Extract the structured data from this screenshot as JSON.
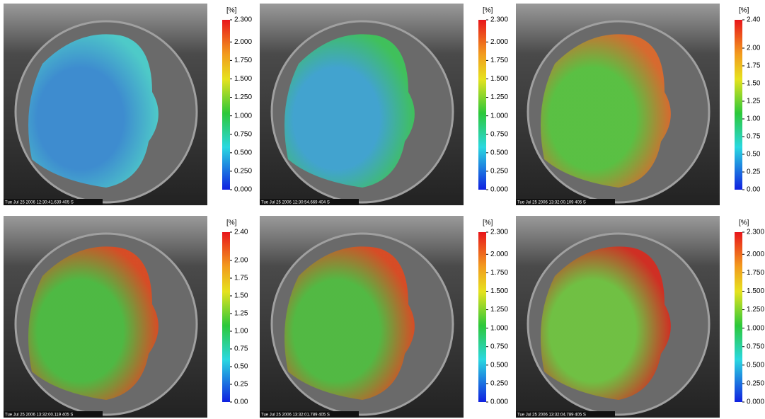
{
  "panels": [
    {
      "unit": "[%]",
      "timestamp": "Tue Jul 25 2006 12:30:41.639 405 S",
      "ticks": [
        "2.300",
        "2.000",
        "1.750",
        "1.500",
        "1.250",
        "1.000",
        "0.750",
        "0.500",
        "0.250",
        "0.000"
      ]
    },
    {
      "unit": "[%]",
      "timestamp": "Tue Jul 25 2006 12:30:54.669 404 S",
      "ticks": [
        "2.300",
        "2.000",
        "1.750",
        "1.500",
        "1.250",
        "1.000",
        "0.750",
        "0.500",
        "0.250",
        "0.000"
      ]
    },
    {
      "unit": "[%]",
      "timestamp": "Tue Jul 25 2006 13:32:00.109 405 S",
      "ticks": [
        "2.40",
        "2.00",
        "1.75",
        "1.50",
        "1.25",
        "1.00",
        "0.75",
        "0.50",
        "0.25",
        "0.00"
      ]
    },
    {
      "unit": "[%]",
      "timestamp": "Tue Jul 25 2006 13:32:00.119 405 S",
      "ticks": [
        "2.40",
        "2.00",
        "1.75",
        "1.50",
        "1.25",
        "1.00",
        "0.75",
        "0.50",
        "0.25",
        "0.00"
      ]
    },
    {
      "unit": "[%]",
      "timestamp": "Tue Jul 25 2006 13:32:01.789 405 S",
      "ticks": [
        "2.300",
        "2.000",
        "1.750",
        "1.500",
        "1.250",
        "1.000",
        "0.750",
        "0.500",
        "0.250",
        "0.000"
      ]
    },
    {
      "unit": "[%]",
      "timestamp": "Tue Jul 25 2006 13:32:04.789 405 S",
      "ticks": [
        "2.300",
        "2.000",
        "1.750",
        "1.500",
        "1.250",
        "1.000",
        "0.750",
        "0.500",
        "0.250",
        "0.000"
      ]
    }
  ]
}
